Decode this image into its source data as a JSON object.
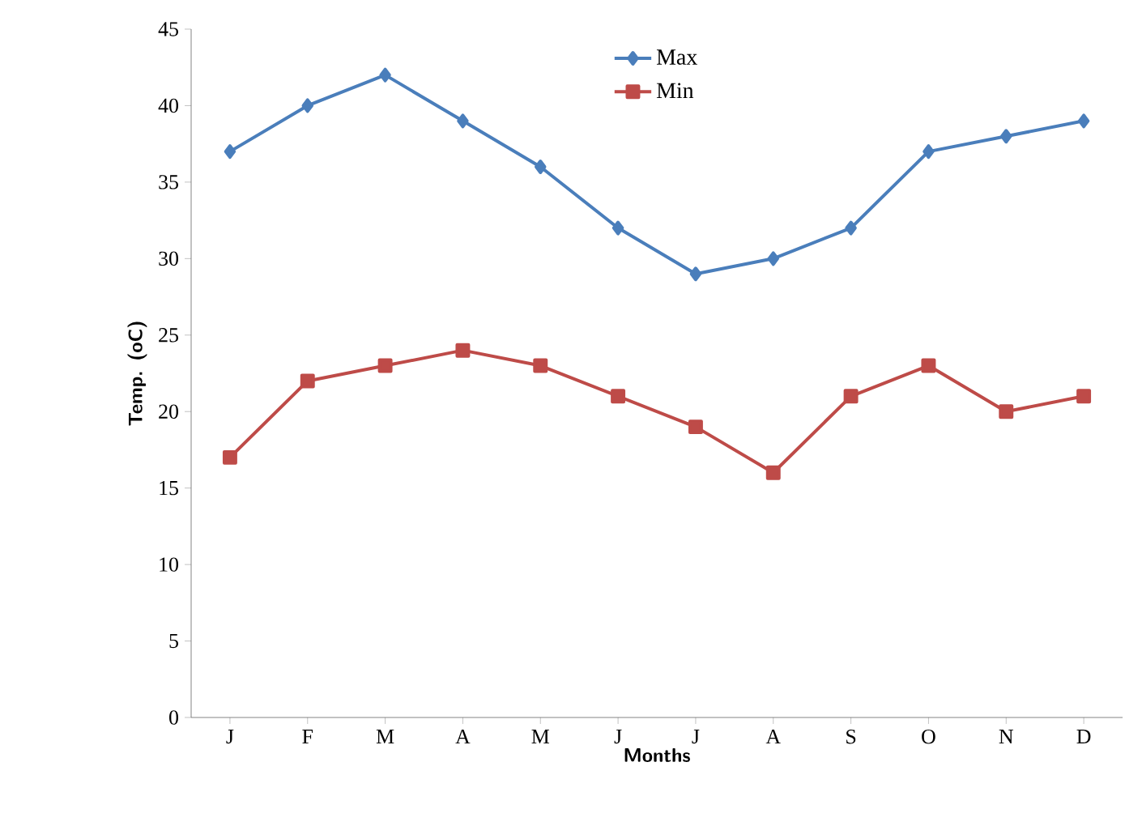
{
  "chart_data": {
    "type": "line",
    "xlabel": "Months",
    "ylabel": "Temp. (oC)",
    "categories": [
      "J",
      "F",
      "M",
      "A",
      "M",
      "J",
      "J",
      "A",
      "S",
      "O",
      "N",
      "D"
    ],
    "series": [
      {
        "name": "Max",
        "color": "#4a7ebb",
        "marker": "diamond",
        "values": [
          37,
          40,
          42,
          39,
          36,
          32,
          29,
          30,
          32,
          37,
          38,
          39
        ]
      },
      {
        "name": "Min",
        "color": "#be4b48",
        "marker": "square",
        "values": [
          17,
          22,
          23,
          24,
          23,
          21,
          19,
          16,
          21,
          23,
          20,
          21
        ]
      }
    ],
    "ylim": [
      0,
      45
    ],
    "yticks": [
      0,
      5,
      10,
      15,
      20,
      25,
      30,
      35,
      40,
      45
    ],
    "grid": false,
    "legend": "top"
  }
}
